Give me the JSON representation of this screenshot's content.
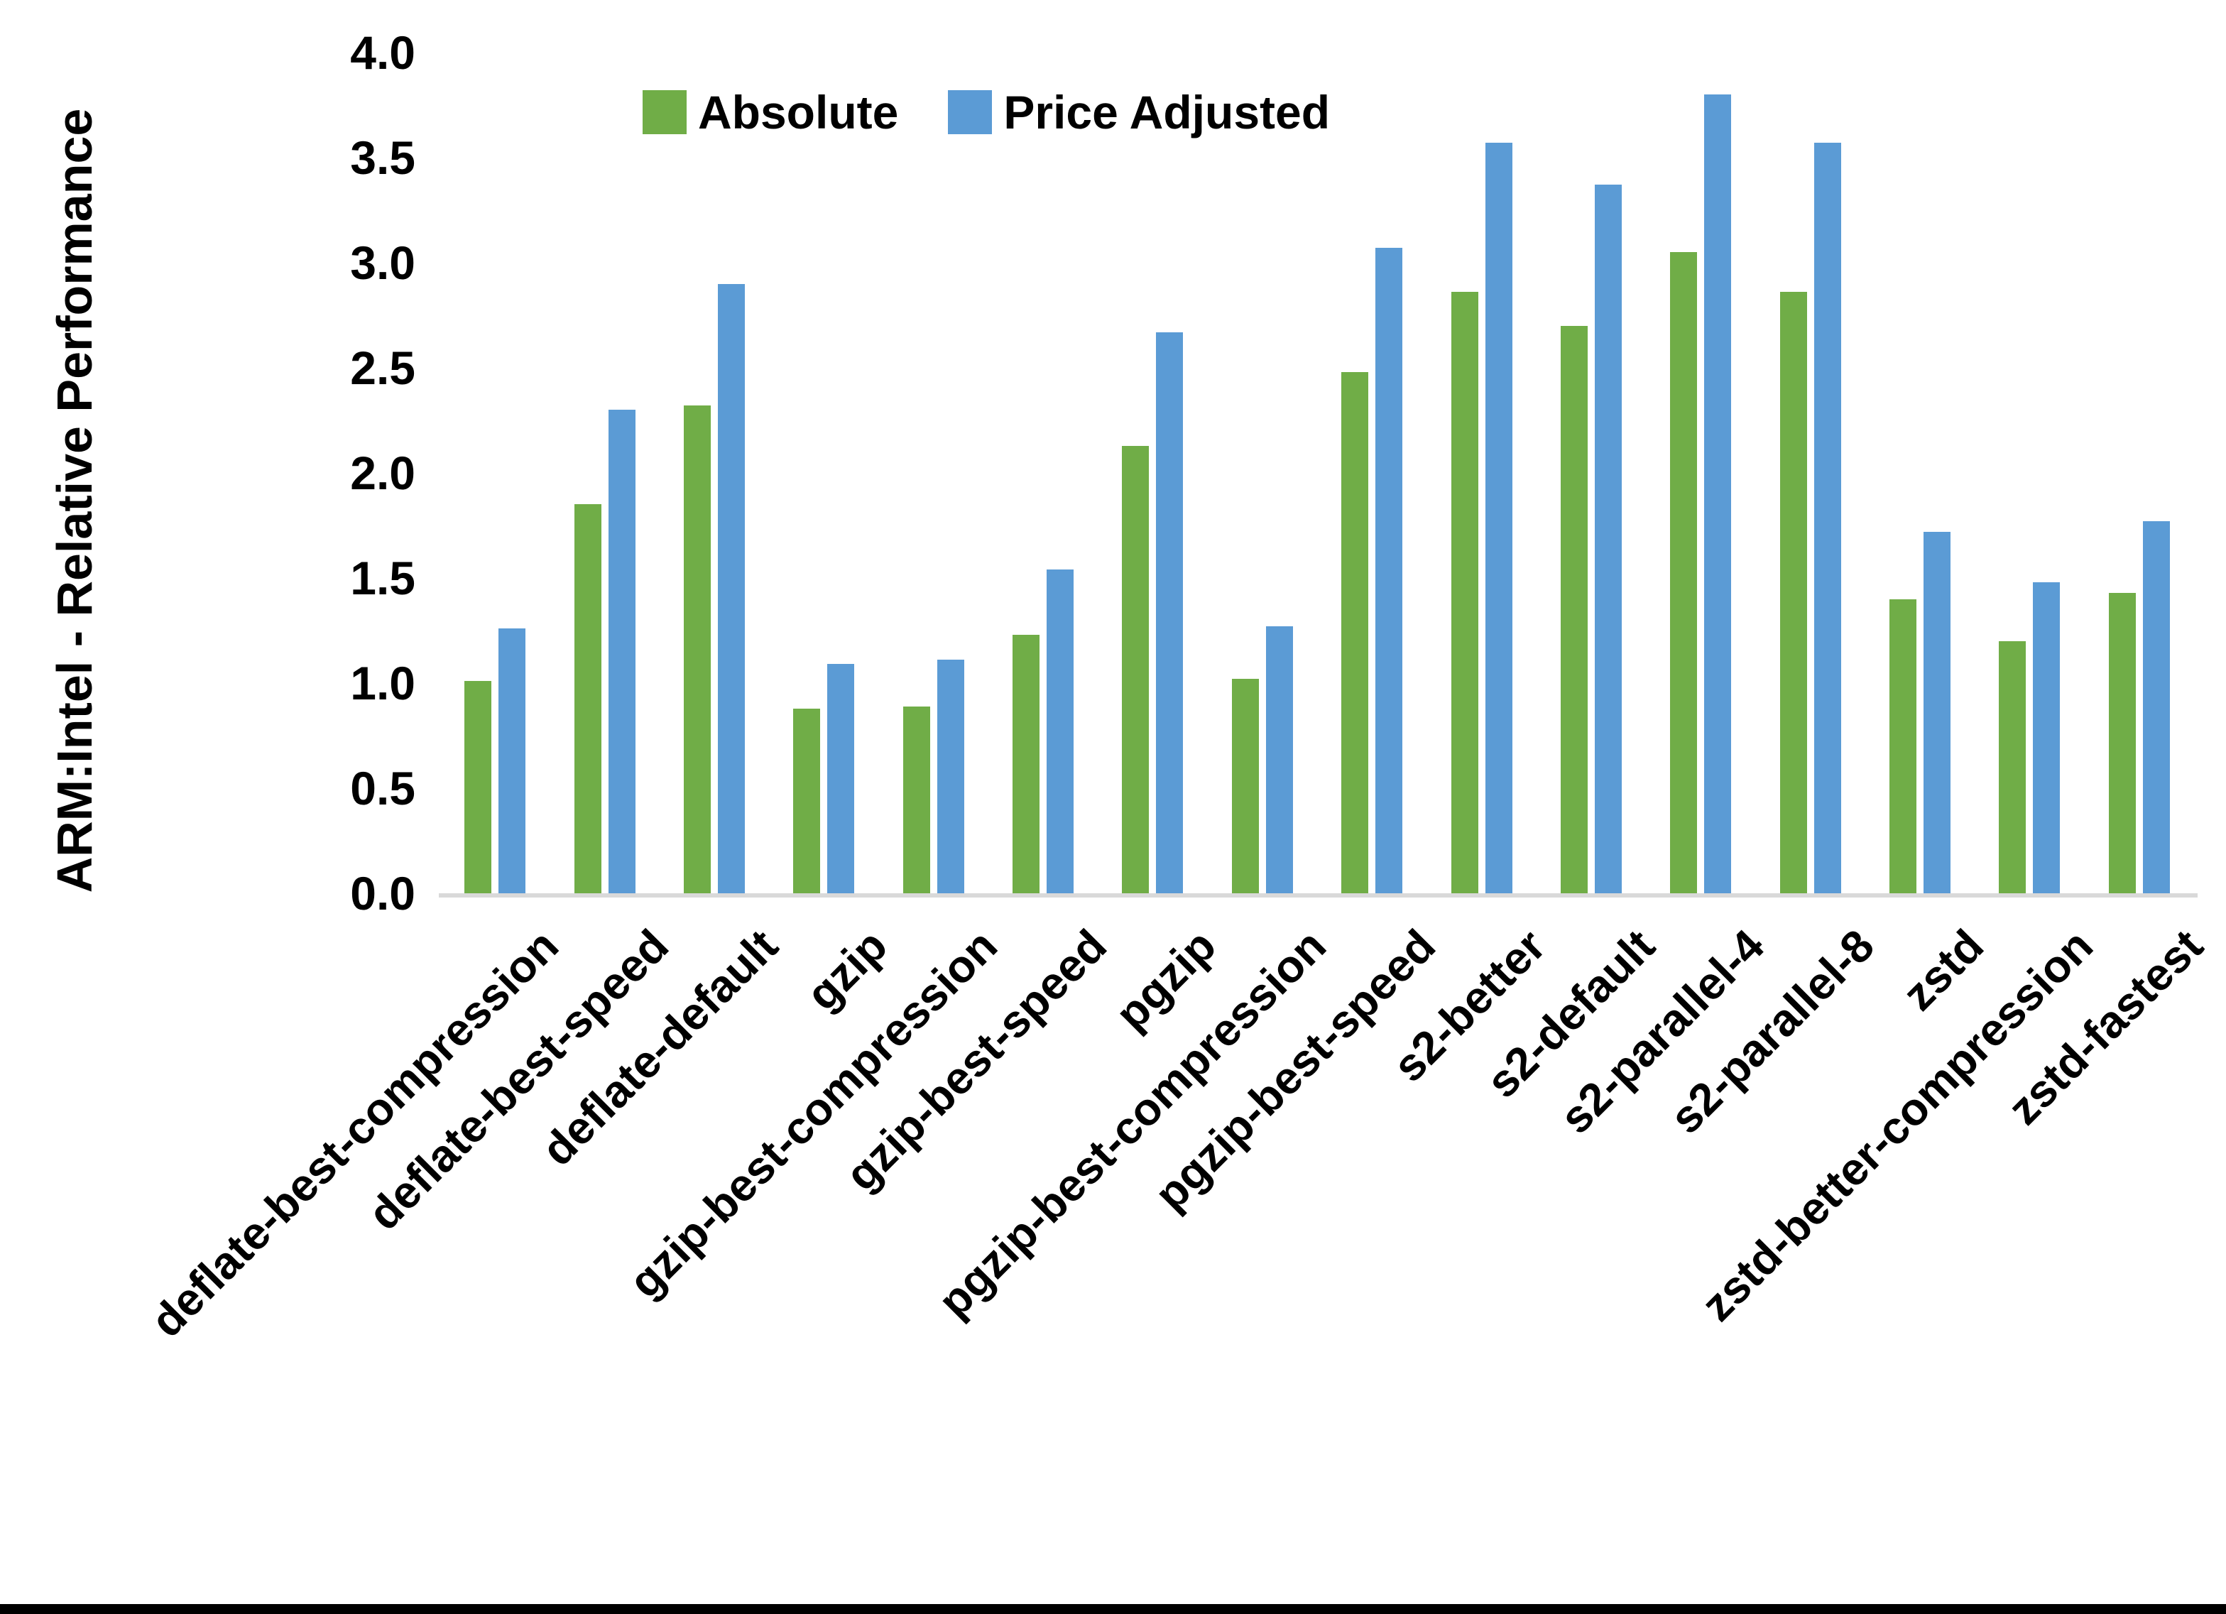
{
  "chart_data": {
    "type": "bar",
    "title": "",
    "xlabel": "",
    "ylabel": "ARM:Intel - Relative Performance",
    "ylim": [
      0.0,
      4.0
    ],
    "ytick_step": 0.5,
    "ytick_labels": [
      "0.0",
      "0.5",
      "1.0",
      "1.5",
      "2.0",
      "2.5",
      "3.0",
      "3.5",
      "4.0"
    ],
    "grid": false,
    "legend_position": "top-center",
    "categories": [
      "deflate-best-compression",
      "deflate-best-speed",
      "deflate-default",
      "gzip",
      "gzip-best-compression",
      "gzip-best-speed",
      "pgzip",
      "pgzip-best-compression",
      "pgzip-best-speed",
      "s2-better",
      "s2-default",
      "s2-parallel-4",
      "s2-parallel-8",
      "zstd",
      "zstd-better-compression",
      "zstd-fastest"
    ],
    "series": [
      {
        "name": "Absolute",
        "color": "#70AD47",
        "values": [
          1.01,
          1.85,
          2.32,
          0.88,
          0.89,
          1.23,
          2.13,
          1.02,
          2.48,
          2.86,
          2.7,
          3.05,
          2.86,
          1.4,
          1.2,
          1.43
        ]
      },
      {
        "name": "Price Adjusted",
        "color": "#5B9BD5",
        "values": [
          1.26,
          2.3,
          2.9,
          1.09,
          1.11,
          1.54,
          2.67,
          1.27,
          3.07,
          3.57,
          3.37,
          3.8,
          3.57,
          1.72,
          1.48,
          1.77
        ]
      }
    ]
  },
  "legend": {
    "absolute_label": "Absolute",
    "price_adjusted_label": "Price Adjusted"
  },
  "axes": {
    "y_title": "ARM:Intel - Relative Performance"
  },
  "colors": {
    "absolute_green": "#70AD47",
    "price_adjusted_blue": "#5B9BD5",
    "axis_line_gray": "#D9D9D9",
    "text_black": "#000000",
    "bottom_border_black": "#000000"
  }
}
